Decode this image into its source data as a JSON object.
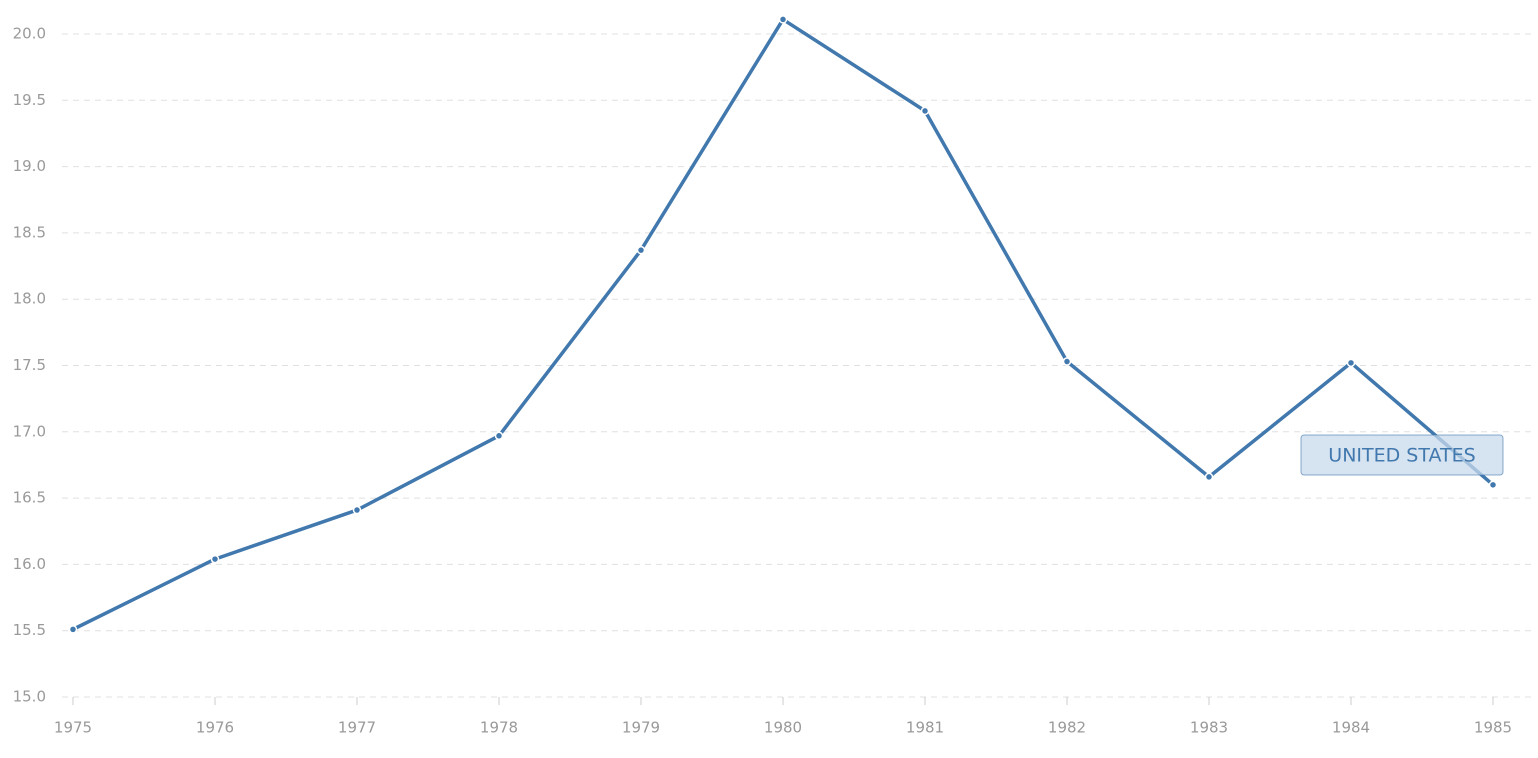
{
  "chart_data": {
    "type": "line",
    "x": [
      1975,
      1976,
      1977,
      1978,
      1979,
      1980,
      1981,
      1982,
      1983,
      1984,
      1985
    ],
    "series": [
      {
        "name": "UNITED STATES",
        "color": "#4178ad",
        "values": [
          15.51,
          16.04,
          16.41,
          16.97,
          18.37,
          20.11,
          19.42,
          17.53,
          16.66,
          17.52,
          16.6
        ]
      }
    ],
    "xlim": [
      1975,
      1985
    ],
    "xticks": [
      1975,
      1976,
      1977,
      1978,
      1979,
      1980,
      1981,
      1982,
      1983,
      1984,
      1985
    ],
    "ylim": [
      15,
      20.2
    ],
    "yticks": [
      {
        "value": 15,
        "label": "15.0"
      },
      {
        "value": 15.5,
        "label": "15.5"
      },
      {
        "value": 16,
        "label": "16.0"
      },
      {
        "value": 16.5,
        "label": "16.5"
      },
      {
        "value": 17,
        "label": "17.0"
      },
      {
        "value": 17.5,
        "label": "17.5"
      },
      {
        "value": 18,
        "label": "18.0"
      },
      {
        "value": 18.5,
        "label": "18.5"
      },
      {
        "value": 19,
        "label": "19.0"
      },
      {
        "value": 19.5,
        "label": "19.5"
      },
      {
        "value": 20,
        "label": "20.0"
      }
    ],
    "grid": true
  }
}
